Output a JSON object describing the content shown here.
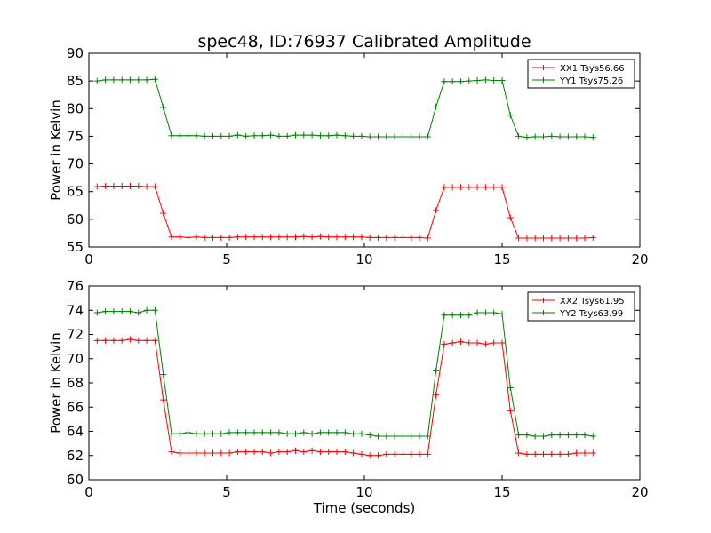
{
  "figure": {
    "title": "spec48, ID:76937 Calibrated Amplitude"
  },
  "chart_data": [
    {
      "type": "line",
      "title": "spec48, ID:76937 Calibrated Amplitude",
      "xlabel": "",
      "ylabel": "Power in Kelvin",
      "xlim": [
        0,
        20
      ],
      "ylim": [
        55,
        90
      ],
      "xticks": [
        0,
        5,
        10,
        15,
        20
      ],
      "yticks": [
        55,
        60,
        65,
        70,
        75,
        80,
        85,
        90
      ],
      "grid": false,
      "legend_position": "top-right",
      "x": [
        0.3,
        0.6,
        0.9,
        1.2,
        1.5,
        1.8,
        2.1,
        2.4,
        2.7,
        3.0,
        3.3,
        3.6,
        3.9,
        4.2,
        4.5,
        4.8,
        5.1,
        5.4,
        5.7,
        6.0,
        6.3,
        6.6,
        6.9,
        7.2,
        7.5,
        7.8,
        8.1,
        8.4,
        8.7,
        9.0,
        9.3,
        9.6,
        9.9,
        10.2,
        10.5,
        10.8,
        11.1,
        11.4,
        11.7,
        12.0,
        12.3,
        12.6,
        12.9,
        13.2,
        13.5,
        13.8,
        14.1,
        14.4,
        14.7,
        15.0,
        15.3,
        15.6,
        15.9,
        16.2,
        16.5,
        16.8,
        17.1,
        17.4,
        17.7,
        18.0,
        18.3
      ],
      "series": [
        {
          "name": "XX1 Tsys56.66",
          "color": "#ff0000",
          "values": [
            65.9,
            66.0,
            66.0,
            66.0,
            66.0,
            66.0,
            65.9,
            65.9,
            61.1,
            56.8,
            56.8,
            56.7,
            56.8,
            56.7,
            56.7,
            56.7,
            56.7,
            56.8,
            56.8,
            56.8,
            56.8,
            56.8,
            56.8,
            56.8,
            56.8,
            56.9,
            56.8,
            56.9,
            56.8,
            56.8,
            56.8,
            56.8,
            56.8,
            56.7,
            56.7,
            56.7,
            56.7,
            56.7,
            56.7,
            56.7,
            56.6,
            61.6,
            65.8,
            65.8,
            65.8,
            65.8,
            65.8,
            65.8,
            65.8,
            65.8,
            60.3,
            56.6,
            56.6,
            56.6,
            56.6,
            56.6,
            56.6,
            56.6,
            56.6,
            56.6,
            56.7
          ]
        },
        {
          "name": "YY1 Tsys75.26",
          "color": "#008000",
          "values": [
            85.0,
            85.2,
            85.2,
            85.2,
            85.2,
            85.2,
            85.2,
            85.3,
            80.2,
            75.1,
            75.1,
            75.1,
            75.1,
            75.0,
            75.0,
            75.0,
            75.0,
            75.2,
            75.0,
            75.1,
            75.1,
            75.2,
            75.0,
            75.0,
            75.2,
            75.2,
            75.2,
            75.1,
            75.1,
            75.2,
            75.1,
            75.0,
            75.0,
            74.9,
            74.9,
            74.9,
            74.9,
            74.9,
            74.9,
            74.9,
            74.9,
            80.3,
            84.9,
            84.9,
            84.9,
            85.0,
            85.1,
            85.2,
            85.1,
            85.1,
            78.8,
            75.0,
            74.8,
            74.9,
            74.9,
            75.0,
            74.9,
            74.9,
            74.9,
            74.9,
            74.8
          ]
        }
      ]
    },
    {
      "type": "line",
      "title": "",
      "xlabel": "Time (seconds)",
      "ylabel": "Power in Kelvin",
      "xlim": [
        0,
        20
      ],
      "ylim": [
        60,
        76
      ],
      "xticks": [
        0,
        5,
        10,
        15,
        20
      ],
      "yticks": [
        60,
        62,
        64,
        66,
        68,
        70,
        72,
        74,
        76
      ],
      "grid": false,
      "legend_position": "top-right",
      "x": [
        0.3,
        0.6,
        0.9,
        1.2,
        1.5,
        1.8,
        2.1,
        2.4,
        2.7,
        3.0,
        3.3,
        3.6,
        3.9,
        4.2,
        4.5,
        4.8,
        5.1,
        5.4,
        5.7,
        6.0,
        6.3,
        6.6,
        6.9,
        7.2,
        7.5,
        7.8,
        8.1,
        8.4,
        8.7,
        9.0,
        9.3,
        9.6,
        9.9,
        10.2,
        10.5,
        10.8,
        11.1,
        11.4,
        11.7,
        12.0,
        12.3,
        12.6,
        12.9,
        13.2,
        13.5,
        13.8,
        14.1,
        14.4,
        14.7,
        15.0,
        15.3,
        15.6,
        15.9,
        16.2,
        16.5,
        16.8,
        17.1,
        17.4,
        17.7,
        18.0,
        18.3
      ],
      "series": [
        {
          "name": "XX2 Tsys61.95",
          "color": "#ff0000",
          "values": [
            71.5,
            71.5,
            71.5,
            71.5,
            71.6,
            71.5,
            71.5,
            71.5,
            66.6,
            62.3,
            62.2,
            62.2,
            62.2,
            62.2,
            62.2,
            62.2,
            62.2,
            62.3,
            62.3,
            62.3,
            62.3,
            62.2,
            62.3,
            62.3,
            62.4,
            62.3,
            62.4,
            62.3,
            62.3,
            62.3,
            62.3,
            62.2,
            62.1,
            62.0,
            62.0,
            62.1,
            62.1,
            62.1,
            62.1,
            62.1,
            62.1,
            67.0,
            71.2,
            71.3,
            71.4,
            71.3,
            71.3,
            71.2,
            71.3,
            71.3,
            65.7,
            62.2,
            62.1,
            62.1,
            62.1,
            62.1,
            62.1,
            62.1,
            62.2,
            62.2,
            62.2
          ]
        },
        {
          "name": "YY2 Tsys63.99",
          "color": "#008000",
          "values": [
            73.8,
            73.9,
            73.9,
            73.9,
            73.9,
            73.8,
            74.0,
            74.0,
            68.7,
            63.8,
            63.8,
            63.9,
            63.8,
            63.8,
            63.8,
            63.8,
            63.9,
            63.9,
            63.9,
            63.9,
            63.9,
            63.9,
            63.9,
            63.8,
            63.8,
            63.9,
            63.8,
            63.9,
            63.9,
            63.9,
            63.9,
            63.8,
            63.8,
            63.7,
            63.6,
            63.6,
            63.6,
            63.6,
            63.6,
            63.6,
            63.6,
            69.0,
            73.6,
            73.6,
            73.6,
            73.6,
            73.8,
            73.8,
            73.8,
            73.7,
            67.6,
            63.7,
            63.7,
            63.6,
            63.6,
            63.7,
            63.7,
            63.7,
            63.7,
            63.7,
            63.6
          ]
        }
      ]
    }
  ]
}
